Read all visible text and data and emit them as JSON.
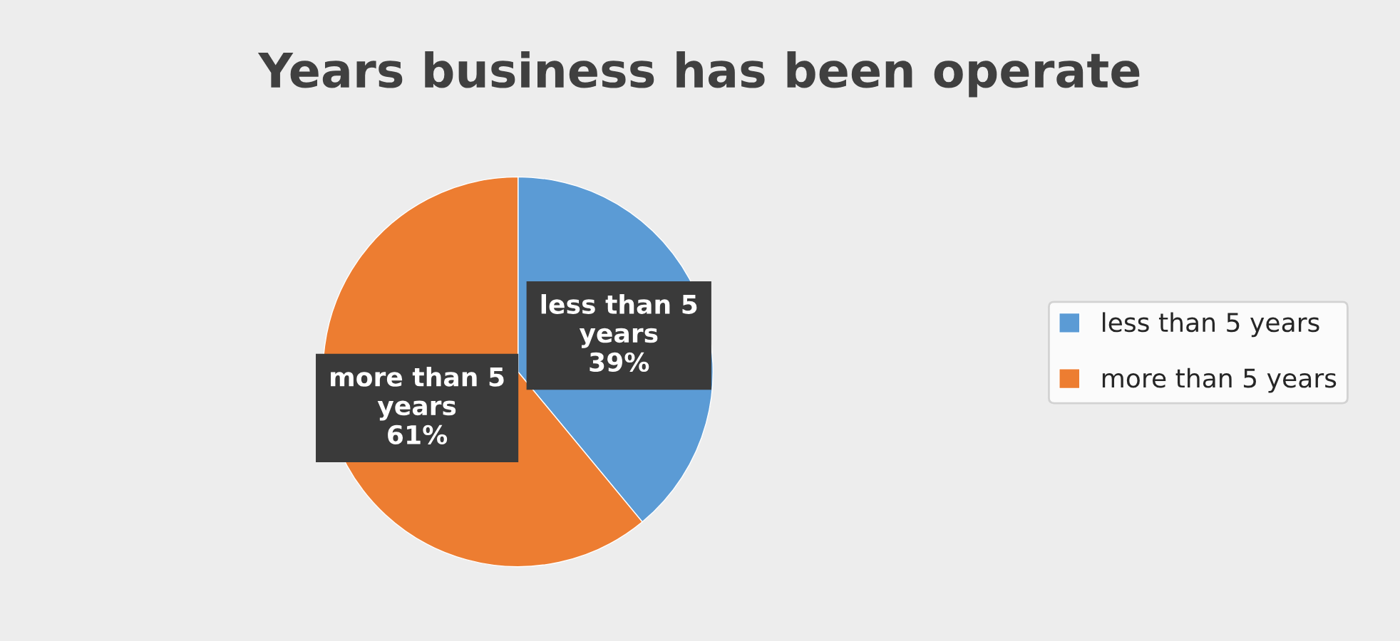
{
  "chart_data": {
    "type": "pie",
    "title": "Years business has been operate",
    "categories": [
      "less than 5 years",
      "more than 5 years"
    ],
    "values": [
      39,
      61
    ],
    "colors": [
      "#5b9bd5",
      "#ed7d31"
    ],
    "value_labels": [
      "less than 5\nyears\n39%",
      "more than 5\nyears\n61%"
    ],
    "legend": "right"
  }
}
